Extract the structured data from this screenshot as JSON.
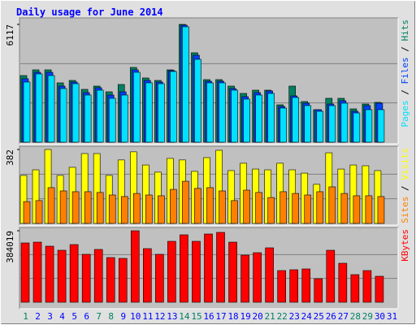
{
  "title": "Daily usage for June 2014",
  "chart_data": [
    {
      "type": "bar",
      "ylim": [
        0,
        6117
      ],
      "yticks": [
        6117
      ],
      "legend_separator": "/",
      "series": [
        {
          "name": "Hits",
          "color": "#008060",
          "values": [
            3460,
            3756,
            3756,
            3081,
            3207,
            2743,
            2912,
            2616,
            2996,
            3882,
            3334,
            3207,
            3756,
            6117,
            4642,
            3249,
            3249,
            2912,
            2532,
            2701,
            2701,
            1941,
            2912,
            2110,
            1688,
            2279,
            2279,
            1730,
            1983,
            2068,
            null
          ]
        },
        {
          "name": "Files",
          "color": "#0040ff",
          "values": [
            3292,
            3629,
            3629,
            2912,
            3123,
            2574,
            2827,
            2448,
            2616,
            3756,
            3207,
            3123,
            3714,
            6077,
            4515,
            3165,
            3165,
            2785,
            2363,
            2574,
            2659,
            1857,
            2405,
            2026,
            1688,
            1983,
            2152,
            1604,
            1899,
            2026,
            null
          ]
        },
        {
          "name": "Pages",
          "color": "#00e0ff",
          "values": [
            3123,
            3545,
            3460,
            2785,
            3038,
            2448,
            2701,
            2279,
            2448,
            3629,
            3081,
            3038,
            3671,
            5992,
            4304,
            3081,
            3081,
            2701,
            2237,
            2448,
            2532,
            1772,
            2321,
            1899,
            1604,
            1899,
            2026,
            1519,
            1688,
            1688,
            null
          ]
        }
      ]
    },
    {
      "type": "bar",
      "ylim": [
        0,
        382
      ],
      "yticks": [
        382
      ],
      "legend_separator": "/",
      "series": [
        {
          "name": "Visits",
          "color": "#ffff00",
          "values": [
            248,
            277,
            382,
            248,
            290,
            361,
            361,
            248,
            328,
            370,
            302,
            265,
            336,
            328,
            269,
            340,
            378,
            273,
            311,
            281,
            277,
            311,
            277,
            260,
            202,
            365,
            281,
            302,
            298,
            273,
            null
          ]
        },
        {
          "name": "Sites",
          "color": "#ff8000",
          "values": [
            113,
            118,
            185,
            168,
            164,
            164,
            160,
            147,
            139,
            155,
            147,
            143,
            176,
            218,
            181,
            185,
            168,
            118,
            172,
            160,
            134,
            164,
            155,
            147,
            164,
            189,
            155,
            143,
            143,
            139,
            null
          ]
        }
      ]
    },
    {
      "type": "bar",
      "ylim": [
        0,
        384019
      ],
      "yticks": [
        384019
      ],
      "categories": [
        "1",
        "2",
        "3",
        "4",
        "5",
        "6",
        "7",
        "8",
        "9",
        "10",
        "11",
        "12",
        "13",
        "14",
        "15",
        "16",
        "17",
        "18",
        "19",
        "20",
        "21",
        "22",
        "23",
        "24",
        "25",
        "26",
        "27",
        "28",
        "29",
        "30",
        "31"
      ],
      "category_colors": [
        "#008060",
        "#0000ff",
        "#0000ff",
        "#0000ff",
        "#0000ff",
        "#0000ff",
        "#008060",
        "#008060",
        "#0000ff",
        "#0000ff",
        "#0000ff",
        "#0000ff",
        "#0000ff",
        "#008060",
        "#008060",
        "#0000ff",
        "#0000ff",
        "#0000ff",
        "#0000ff",
        "#0000ff",
        "#008060",
        "#008060",
        "#0000ff",
        "#0000ff",
        "#0000ff",
        "#0000ff",
        "#0000ff",
        "#008060",
        "#008060",
        "#0000ff",
        "#0000ff"
      ],
      "series": [
        {
          "name": "KBytes",
          "color": "#ff0000",
          "values": [
            318572,
            322936,
            301116,
            279296,
            309844,
            257476,
            283660,
            240020,
            235656,
            384019,
            288024,
            257476,
            327300,
            362212,
            327300,
            366576,
            375304,
            322936,
            253112,
            266204,
            292388,
            170196,
            174560,
            178924,
            126556,
            279296,
            209472,
            148376,
            170196,
            139648,
            null
          ]
        }
      ]
    }
  ]
}
